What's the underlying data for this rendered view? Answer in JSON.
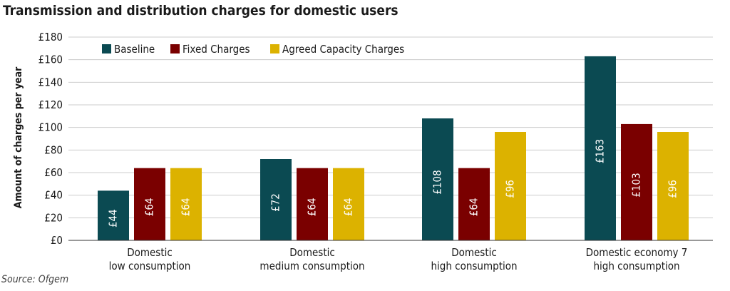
{
  "title": "Transmission and distribution charges for domestic users",
  "source": "Source: Ofgem",
  "chart_data": {
    "type": "bar",
    "title": "Transmission and distribution charges for domestic users",
    "ylabel": "Amount of charges per year",
    "xlabel": "",
    "ylim": [
      0,
      180
    ],
    "ytick_step": 20,
    "ytick_prefix": "£",
    "ytick_labels": [
      "£0",
      "£20",
      "£40",
      "£60",
      "£80",
      "£100",
      "£120",
      "£140",
      "£160",
      "£180"
    ],
    "grid": true,
    "legend_position": "top-left",
    "categories": [
      [
        "Domestic",
        "low consumption"
      ],
      [
        "Domestic",
        "medium consumption"
      ],
      [
        "Domestic",
        "high consumption"
      ],
      [
        "Domestic economy 7",
        "high consumption"
      ]
    ],
    "series": [
      {
        "name": "Baseline",
        "color": "#0b4a52",
        "values": [
          44,
          72,
          108,
          163
        ],
        "labels": [
          "£44",
          "£72",
          "£108",
          "£163"
        ]
      },
      {
        "name": "Fixed Charges",
        "color": "#7a0000",
        "values": [
          64,
          64,
          64,
          103
        ],
        "labels": [
          "£64",
          "£64",
          "£64",
          "£103"
        ]
      },
      {
        "name": "Agreed Capacity Charges",
        "color": "#dcb200",
        "values": [
          64,
          64,
          96,
          96
        ],
        "labels": [
          "£64",
          "£64",
          "£96",
          "£96"
        ]
      }
    ]
  }
}
